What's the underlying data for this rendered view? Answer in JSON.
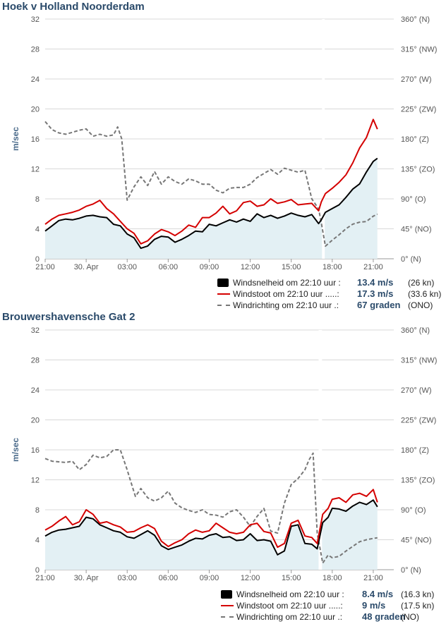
{
  "charts": [
    {
      "title": "Hoek v Holland Noorderdam",
      "legend": [
        {
          "label": "Windsnelheid om 22:10 uur :",
          "value": "13.4 m/s",
          "extra": "(26 kn)"
        },
        {
          "label": "Windstoot om 22:10 uur .....:",
          "value": "17.3 m/s",
          "extra": "(33.6 kn)"
        },
        {
          "label": "Windrichting om 22:10 uur .:",
          "value": "67 graden",
          "extra": "(ONO)"
        }
      ]
    },
    {
      "title": "Brouwershavensche Gat 2",
      "legend": [
        {
          "label": "Windsnelheid om 22:10 uur :",
          "value": "8.4 m/s",
          "extra": "(16.3 kn)"
        },
        {
          "label": "Windstoot om 22:10 uur .....:",
          "value": "9 m/s",
          "extra": "(17.5 kn)"
        },
        {
          "label": "Windrichting om 22:10 uur .:",
          "value": "48 graden",
          "extra": "(NO)"
        }
      ]
    }
  ],
  "chart_data": [
    {
      "type": "line",
      "title": "Hoek v Holland Noorderdam",
      "ylabel": "m/sec",
      "ylim": [
        0,
        32
      ],
      "yticks": [
        0,
        4,
        8,
        12,
        16,
        20,
        24,
        28,
        32
      ],
      "y2lim": [
        0,
        360
      ],
      "y2ticks": [
        "0° (N)",
        "45° (NO)",
        "90° (O)",
        "135° (ZO)",
        "180° (Z)",
        "225° (ZW)",
        "270° (W)",
        "315° (NW)",
        "360° (N)"
      ],
      "xlim": [
        0,
        25.5
      ],
      "xticks": [
        {
          "x": 0,
          "label": "21:00"
        },
        {
          "x": 3,
          "label": "30. Apr"
        },
        {
          "x": 6,
          "label": "03:00"
        },
        {
          "x": 9,
          "label": "06:00"
        },
        {
          "x": 12,
          "label": "09:00"
        },
        {
          "x": 15,
          "label": "12:00"
        },
        {
          "x": 18,
          "label": "15:00"
        },
        {
          "x": 21,
          "label": "18:00"
        },
        {
          "x": 24,
          "label": "21:00"
        }
      ],
      "grid": true,
      "gap": [
        20.25,
        20.45
      ],
      "series": [
        {
          "name": "Windsnelheid",
          "color": "#000000",
          "area": true,
          "x": [
            0,
            0.5,
            1,
            1.5,
            2,
            2.5,
            3,
            3.5,
            4,
            4.5,
            5,
            5.5,
            6,
            6.5,
            7,
            7.5,
            8,
            8.5,
            9,
            9.5,
            10,
            10.5,
            11,
            11.5,
            12,
            12.5,
            13,
            13.5,
            14,
            14.5,
            15,
            15.5,
            16,
            16.5,
            17,
            17.5,
            18,
            18.5,
            19,
            19.5,
            20,
            20.2,
            20.5,
            21,
            21.5,
            22,
            22.5,
            23,
            23.5,
            24,
            24.3
          ],
          "y": [
            3.7,
            4.4,
            5.1,
            5.3,
            5.2,
            5.4,
            5.7,
            5.8,
            5.6,
            5.5,
            4.6,
            4.4,
            3.3,
            2.8,
            1.4,
            1.7,
            2.6,
            3.0,
            2.9,
            2.2,
            2.6,
            3.1,
            3.7,
            3.6,
            4.6,
            4.4,
            4.8,
            5.2,
            4.9,
            5.3,
            5.0,
            6.0,
            5.5,
            5.8,
            5.4,
            5.7,
            6.1,
            5.8,
            5.6,
            5.9,
            4.7,
            5.2,
            6.2,
            6.7,
            7.2,
            8.2,
            9.3,
            10.0,
            11.6,
            13.0,
            13.4
          ]
        },
        {
          "name": "Windstoot",
          "color": "#d40000",
          "x": [
            0,
            0.5,
            1,
            1.5,
            2,
            2.5,
            3,
            3.5,
            4,
            4.5,
            5,
            5.5,
            6,
            6.5,
            7,
            7.5,
            8,
            8.5,
            9,
            9.5,
            10,
            10.5,
            11,
            11.5,
            12,
            12.5,
            13,
            13.5,
            14,
            14.5,
            15,
            15.5,
            16,
            16.5,
            17,
            17.5,
            18,
            18.5,
            19,
            19.5,
            20,
            20.2,
            20.5,
            21,
            21.5,
            22,
            22.5,
            23,
            23.5,
            24,
            24.3
          ],
          "y": [
            4.6,
            5.3,
            5.8,
            6.0,
            6.2,
            6.5,
            7.0,
            7.3,
            7.8,
            6.7,
            6.0,
            5.0,
            4.0,
            3.4,
            2.0,
            2.4,
            3.3,
            3.9,
            3.6,
            3.1,
            3.7,
            4.5,
            4.2,
            5.5,
            5.5,
            6.1,
            7.0,
            6.0,
            6.4,
            7.5,
            7.7,
            7.0,
            7.2,
            8.0,
            7.4,
            7.6,
            7.9,
            7.2,
            7.3,
            7.4,
            6.4,
            7.6,
            8.7,
            9.4,
            10.2,
            11.2,
            12.8,
            14.8,
            16.2,
            18.6,
            17.3
          ]
        },
        {
          "name": "Windrichting",
          "color": "#777777",
          "dashed": true,
          "axis": "right",
          "x": [
            0,
            0.5,
            1,
            1.5,
            2,
            2.5,
            3,
            3.5,
            4,
            4.5,
            5,
            5.3,
            5.6,
            6,
            6.5,
            7,
            7.5,
            8,
            8.5,
            9,
            9.5,
            10,
            10.5,
            11,
            11.5,
            12,
            12.5,
            13,
            13.5,
            14,
            14.5,
            15,
            15.5,
            16,
            16.5,
            17,
            17.5,
            18,
            18.5,
            19,
            19.5,
            20,
            20.2,
            20.5,
            21,
            21.5,
            22,
            22.5,
            23,
            23.5,
            24,
            24.3
          ],
          "y": [
            206,
            194,
            189,
            187,
            190,
            193,
            195,
            184,
            187,
            184,
            186,
            198,
            180,
            88,
            108,
            123,
            110,
            131,
            112,
            123,
            116,
            112,
            120,
            117,
            112,
            112,
            103,
            99,
            106,
            107,
            107,
            112,
            122,
            128,
            134,
            127,
            136,
            133,
            130,
            133,
            90,
            75,
            54,
            19,
            28,
            36,
            45,
            52,
            55,
            56,
            64,
            67
          ]
        }
      ]
    },
    {
      "type": "line",
      "title": "Brouwershavensche Gat 2",
      "ylabel": "m/sec",
      "ylim": [
        0,
        32
      ],
      "yticks": [
        0,
        4,
        8,
        12,
        16,
        20,
        24,
        28,
        32
      ],
      "y2lim": [
        0,
        360
      ],
      "y2ticks": [
        "0° (N)",
        "45° (NO)",
        "90° (O)",
        "135° (ZO)",
        "180° (Z)",
        "225° (ZW)",
        "270° (W)",
        "315° (NW)",
        "360° (N)"
      ],
      "xlim": [
        0,
        25.5
      ],
      "xticks": [
        {
          "x": 0,
          "label": "21:00"
        },
        {
          "x": 3,
          "label": "30. Apr"
        },
        {
          "x": 6,
          "label": "03:00"
        },
        {
          "x": 9,
          "label": "06:00"
        },
        {
          "x": 12,
          "label": "09:00"
        },
        {
          "x": 15,
          "label": "12:00"
        },
        {
          "x": 18,
          "label": "15:00"
        },
        {
          "x": 21,
          "label": "18:00"
        },
        {
          "x": 24,
          "label": "21:00"
        }
      ],
      "grid": true,
      "gap": [
        20.0,
        20.25
      ],
      "series": [
        {
          "name": "Windsnelheid",
          "color": "#000000",
          "area": true,
          "x": [
            0,
            0.5,
            1,
            1.5,
            2,
            2.5,
            3,
            3.5,
            4,
            4.5,
            5,
            5.5,
            6,
            6.5,
            7,
            7.5,
            8,
            8.5,
            9,
            9.5,
            10,
            10.5,
            11,
            11.5,
            12,
            12.5,
            13,
            13.5,
            14,
            14.5,
            15,
            15.5,
            16,
            16.5,
            17,
            17.5,
            18,
            18.5,
            19,
            19.5,
            19.9,
            20.3,
            20.7,
            21,
            21.5,
            22,
            22.5,
            23,
            23.5,
            24,
            24.3
          ],
          "y": [
            4.5,
            5.0,
            5.3,
            5.4,
            5.6,
            5.8,
            7.0,
            6.8,
            6.0,
            5.6,
            5.2,
            5.0,
            4.4,
            4.2,
            4.7,
            5.2,
            4.6,
            3.2,
            2.7,
            3.0,
            3.3,
            3.8,
            4.2,
            4.1,
            4.6,
            4.8,
            4.3,
            4.4,
            3.9,
            4.0,
            4.8,
            3.9,
            4.0,
            3.8,
            2.0,
            2.5,
            5.8,
            6.0,
            3.5,
            3.4,
            2.8,
            6.3,
            7.0,
            8.2,
            8.1,
            7.8,
            8.5,
            9.0,
            8.7,
            9.3,
            8.4
          ]
        },
        {
          "name": "Windstoot",
          "color": "#d40000",
          "x": [
            0,
            0.5,
            1,
            1.5,
            2,
            2.5,
            3,
            3.5,
            4,
            4.5,
            5,
            5.5,
            6,
            6.5,
            7,
            7.5,
            8,
            8.5,
            9,
            9.5,
            10,
            10.5,
            11,
            11.5,
            12,
            12.5,
            13,
            13.5,
            14,
            14.5,
            15,
            15.5,
            16,
            16.5,
            17,
            17.5,
            18,
            18.5,
            19,
            19.5,
            19.9,
            20.3,
            20.7,
            21,
            21.5,
            22,
            22.5,
            23,
            23.5,
            24,
            24.3
          ],
          "y": [
            5.3,
            5.8,
            6.5,
            7.1,
            6.0,
            6.4,
            8.0,
            7.4,
            6.2,
            6.4,
            6.0,
            5.7,
            5.0,
            5.1,
            5.6,
            6.0,
            5.5,
            3.8,
            3.1,
            3.6,
            4.0,
            4.8,
            5.3,
            5.0,
            5.2,
            6.2,
            5.6,
            5.0,
            4.8,
            5.0,
            6.0,
            6.2,
            5.1,
            4.9,
            3.0,
            3.5,
            6.2,
            6.6,
            4.5,
            4.3,
            3.5,
            7.4,
            8.2,
            9.4,
            9.6,
            9.0,
            10.0,
            10.2,
            9.8,
            10.7,
            9.0
          ]
        },
        {
          "name": "Windrichting",
          "color": "#777777",
          "dashed": true,
          "axis": "right",
          "x": [
            0,
            0.5,
            1,
            1.5,
            2,
            2.5,
            3,
            3.5,
            4,
            4.5,
            5,
            5.5,
            6,
            6.3,
            6.6,
            7,
            7.5,
            8,
            8.5,
            9,
            9.5,
            10,
            10.5,
            11,
            11.5,
            12,
            12.5,
            13,
            13.5,
            14,
            14.5,
            15,
            15.5,
            16,
            16.5,
            17,
            17.5,
            18,
            18.5,
            19,
            19.3,
            19.6,
            19.9,
            20.3,
            20.7,
            21,
            21.5,
            22,
            22.5,
            23,
            23.5,
            24,
            24.3
          ],
          "y": [
            167,
            163,
            162,
            161,
            163,
            150,
            158,
            172,
            168,
            170,
            180,
            180,
            150,
            130,
            110,
            122,
            108,
            103,
            108,
            118,
            100,
            93,
            89,
            86,
            90,
            83,
            82,
            79,
            87,
            90,
            79,
            65,
            80,
            92,
            58,
            55,
            100,
            128,
            137,
            150,
            165,
            175,
            55,
            10,
            22,
            18,
            20,
            28,
            35,
            42,
            45,
            47,
            48
          ]
        }
      ]
    }
  ]
}
